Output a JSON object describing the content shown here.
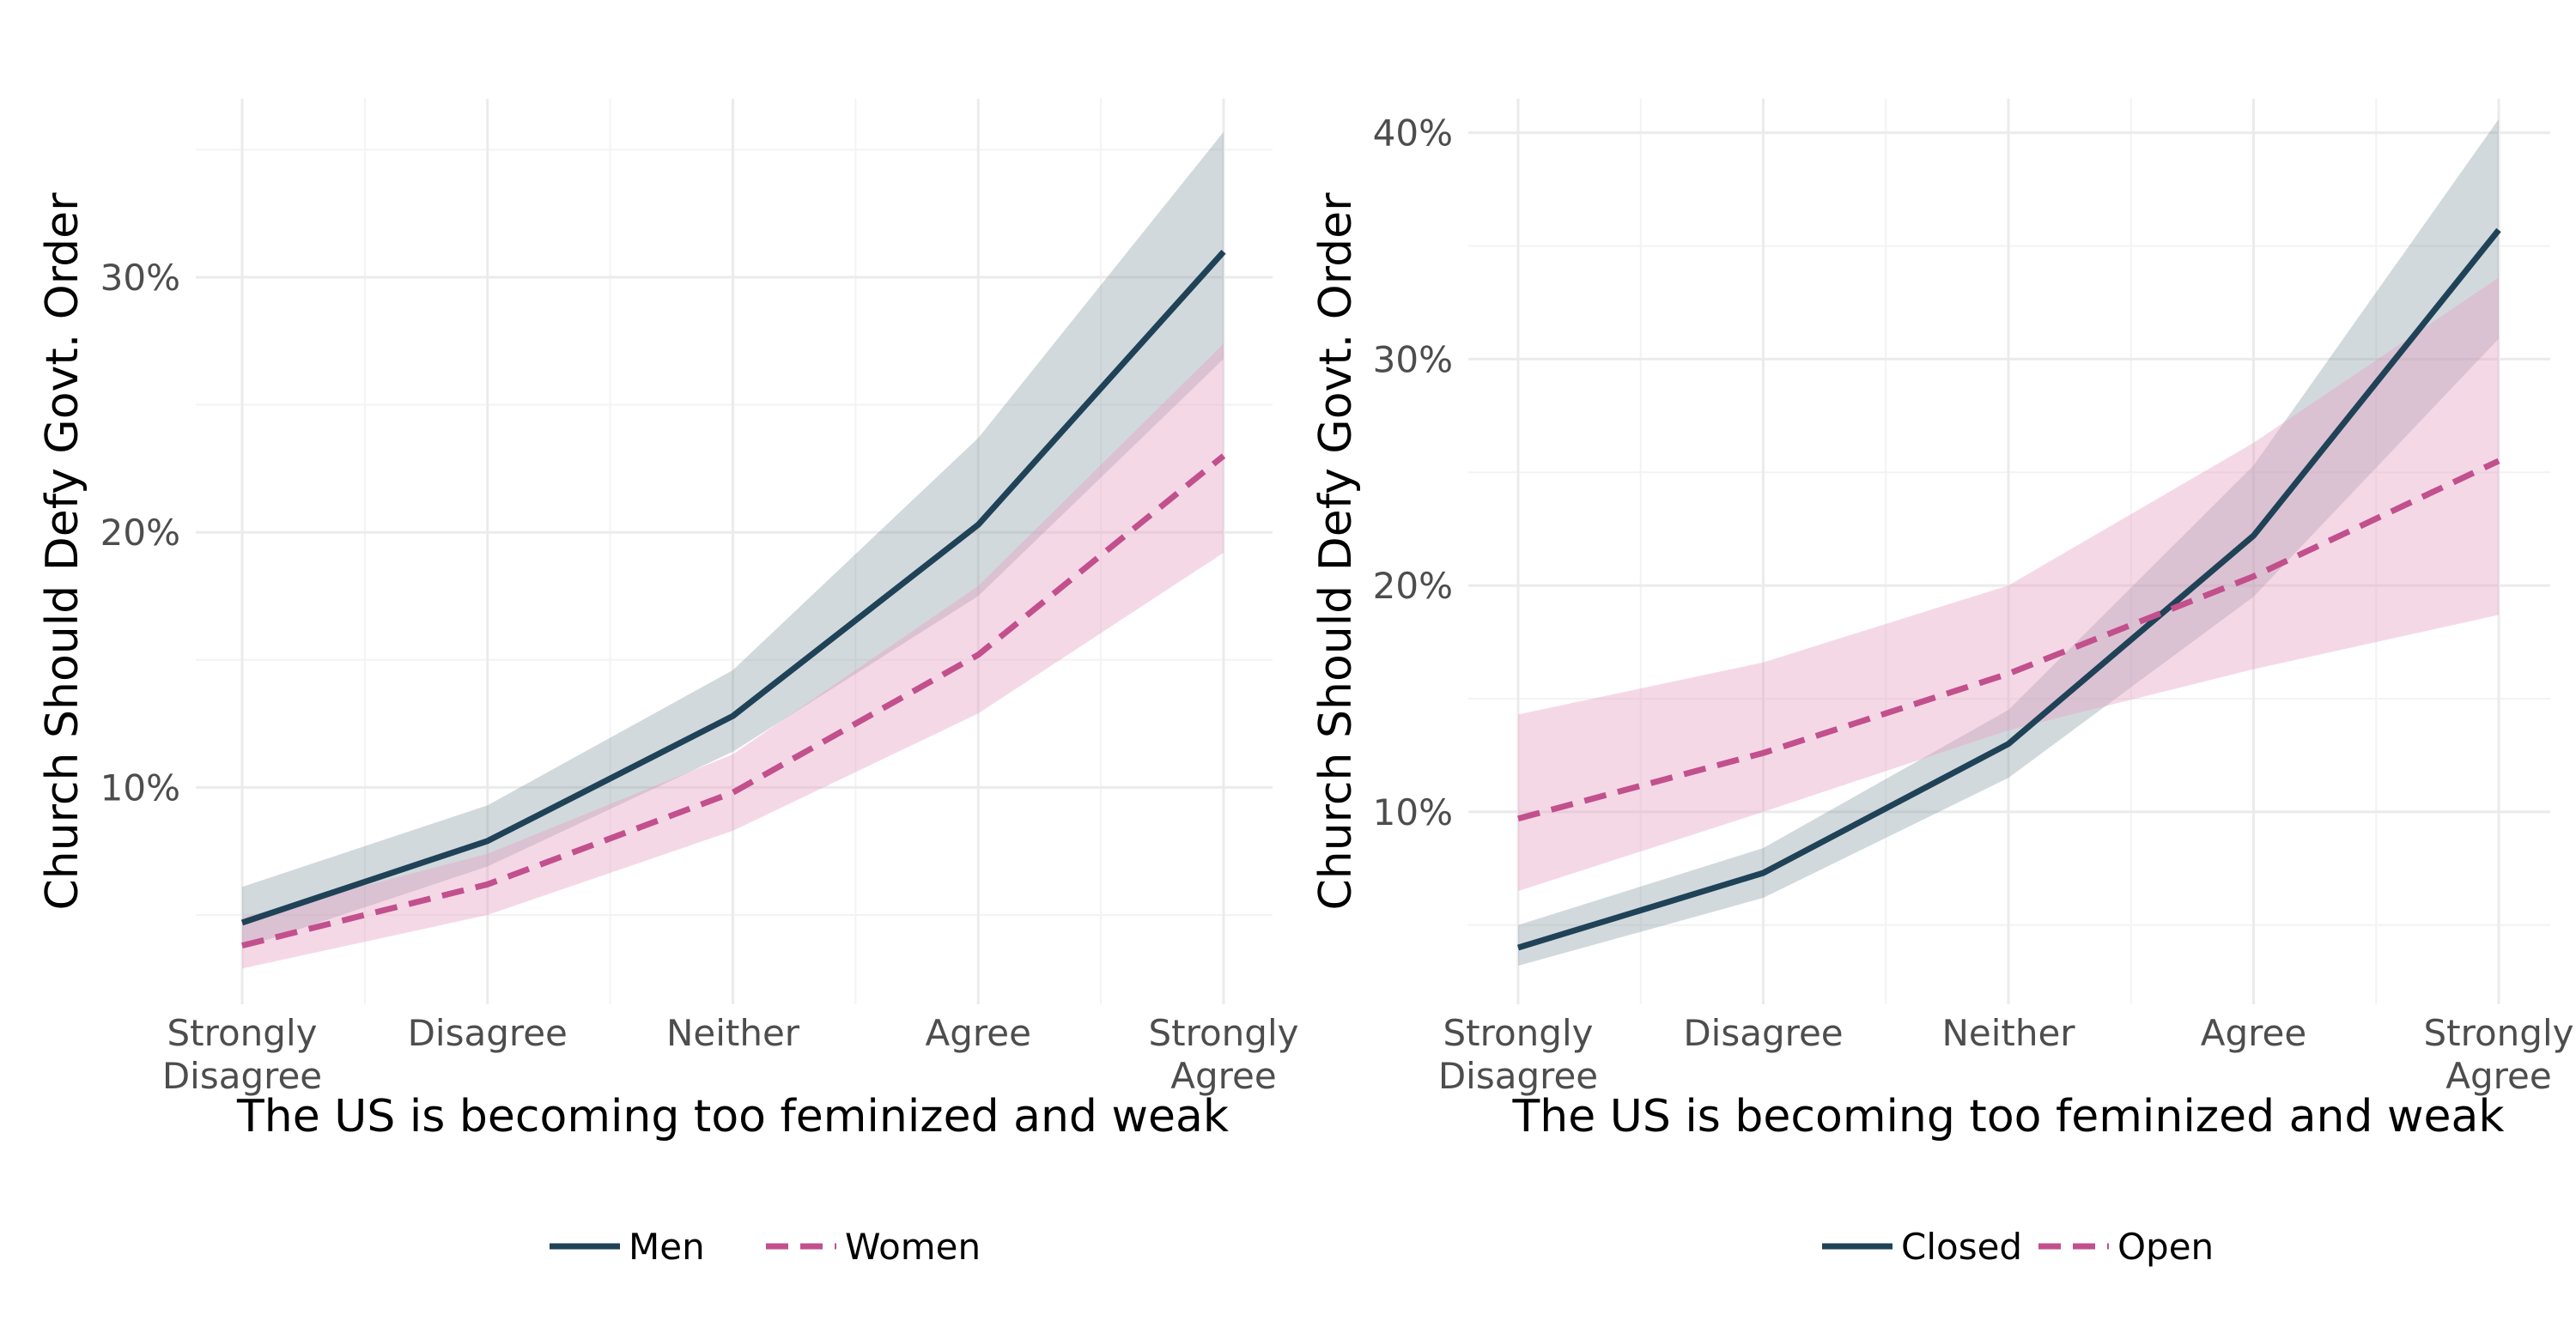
{
  "colors": {
    "dark_line": "#1f4257",
    "dark_band": "#8a9ba6",
    "pink_line": "#c2508d",
    "pink_band": "#e7a3c4"
  },
  "chart_data": [
    {
      "type": "line",
      "xlabel": "The US is becoming too feminized and weak",
      "ylabel": "Church Should Defy Govt. Order",
      "categories": [
        [
          "Strongly",
          "Disagree"
        ],
        [
          "Disagree"
        ],
        [
          "Neither"
        ],
        [
          "Agree"
        ],
        [
          "Strongly",
          "Agree"
        ]
      ],
      "x": [
        1,
        2,
        3,
        4,
        5
      ],
      "ylim": [
        1.5,
        37
      ],
      "yticks": [
        10,
        20,
        30
      ],
      "ytick_labels": [
        "10%",
        "20%",
        "30%"
      ],
      "grid": true,
      "legend_position": "bottom",
      "series": [
        {
          "name": "Men",
          "style": "solid",
          "values": [
            4.7,
            7.9,
            12.8,
            20.3,
            31.0
          ],
          "lower": [
            3.7,
            6.9,
            11.4,
            17.5,
            26.8
          ],
          "upper": [
            6.1,
            9.3,
            14.6,
            23.7,
            35.7
          ]
        },
        {
          "name": "Women",
          "style": "dashed",
          "values": [
            3.8,
            6.2,
            9.8,
            15.2,
            23.0
          ],
          "lower": [
            2.9,
            5.0,
            8.3,
            12.9,
            19.2
          ],
          "upper": [
            4.9,
            7.4,
            11.3,
            17.9,
            27.4
          ]
        }
      ]
    },
    {
      "type": "line",
      "xlabel": "The US is becoming too feminized and weak",
      "ylabel": "Church Should Defy Govt. Order",
      "categories": [
        [
          "Strongly",
          "Disagree"
        ],
        [
          "Disagree"
        ],
        [
          "Neither"
        ],
        [
          "Agree"
        ],
        [
          "Strongly",
          "Agree"
        ]
      ],
      "x": [
        1,
        2,
        3,
        4,
        5
      ],
      "ylim": [
        1.5,
        41.5
      ],
      "yticks": [
        10,
        20,
        30,
        40
      ],
      "ytick_labels": [
        "10%",
        "20%",
        "30%",
        "40%"
      ],
      "grid": true,
      "legend_position": "bottom",
      "series": [
        {
          "name": "Closed",
          "style": "solid",
          "values": [
            4.0,
            7.3,
            13.0,
            22.2,
            35.7
          ],
          "lower": [
            3.2,
            6.2,
            11.5,
            19.5,
            30.9
          ],
          "upper": [
            5.0,
            8.4,
            14.5,
            25.3,
            40.6
          ]
        },
        {
          "name": "Open",
          "style": "dashed",
          "values": [
            9.7,
            12.6,
            16.1,
            20.4,
            25.5
          ],
          "lower": [
            6.5,
            10.0,
            13.6,
            16.3,
            18.7
          ],
          "upper": [
            14.3,
            16.6,
            20.0,
            26.3,
            33.6
          ]
        }
      ]
    }
  ]
}
